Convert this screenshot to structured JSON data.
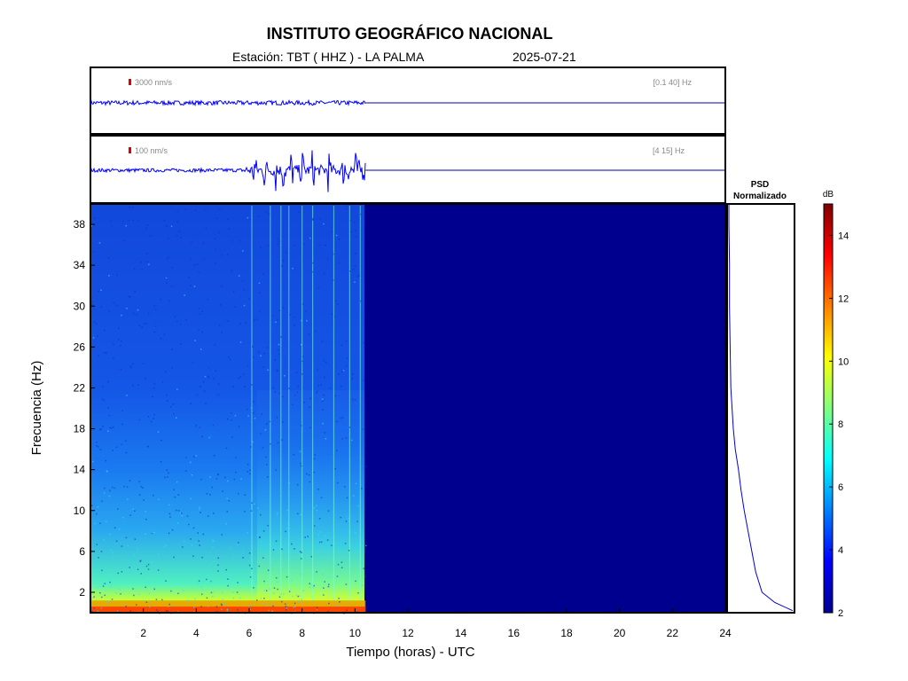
{
  "header": {
    "title": "INSTITUTO GEOGRÁFICO NACIONAL",
    "station": "Estación:  TBT ( HHZ ) - LA PALMA",
    "date": "2025-07-21"
  },
  "chart_data": [
    {
      "type": "line",
      "panel": "seismogram-broadband",
      "scale_label": "3000 nm/s",
      "band_label": "[0.1 40] Hz",
      "x_range_hours": [
        0,
        24
      ],
      "data_end_hour": 10.4,
      "amplitude_relative": "low, uniform"
    },
    {
      "type": "line",
      "panel": "seismogram-filtered",
      "scale_label": "100 nm/s",
      "band_label": "[4 15] Hz",
      "x_range_hours": [
        0,
        24
      ],
      "data_end_hour": 10.4,
      "bursts_hours": [
        6.2,
        6.6,
        7.0,
        7.3,
        7.6,
        8.0,
        8.4,
        9.0,
        9.6,
        10.0
      ]
    },
    {
      "type": "heatmap",
      "panel": "spectrogram",
      "xlabel": "Tiempo (horas) - UTC",
      "ylabel": "Frecuencia  (Hz)",
      "xlim": [
        0,
        24
      ],
      "ylim": [
        0,
        40
      ],
      "x_ticks": [
        2,
        4,
        6,
        8,
        10,
        12,
        14,
        16,
        18,
        20,
        22,
        24
      ],
      "y_ticks": [
        2,
        6,
        10,
        14,
        18,
        22,
        26,
        30,
        34,
        38
      ],
      "data_end_hour": 10.4,
      "colormap": "jet",
      "vertical_lines_hours": [
        6.1,
        6.8,
        7.2,
        7.5,
        8.0,
        8.4,
        9.2,
        9.8,
        10.2
      ]
    },
    {
      "type": "line",
      "panel": "psd",
      "title": "PSD\nNormalizado",
      "ylim": [
        0,
        40
      ],
      "profile": [
        {
          "f": 0.2,
          "p": 1.0
        },
        {
          "f": 1.0,
          "p": 0.72
        },
        {
          "f": 2.0,
          "p": 0.52
        },
        {
          "f": 4.0,
          "p": 0.42
        },
        {
          "f": 6.0,
          "p": 0.36
        },
        {
          "f": 8.0,
          "p": 0.3
        },
        {
          "f": 10.0,
          "p": 0.24
        },
        {
          "f": 12.0,
          "p": 0.19
        },
        {
          "f": 14.0,
          "p": 0.15
        },
        {
          "f": 16.0,
          "p": 0.1
        },
        {
          "f": 18.0,
          "p": 0.07
        },
        {
          "f": 20.0,
          "p": 0.05
        },
        {
          "f": 22.0,
          "p": 0.03
        },
        {
          "f": 26.0,
          "p": 0.02
        },
        {
          "f": 30.0,
          "p": 0.01
        },
        {
          "f": 34.0,
          "p": 0.01
        },
        {
          "f": 38.0,
          "p": 0.0
        },
        {
          "f": 40.0,
          "p": 0.0
        }
      ]
    },
    {
      "type": "colorbar",
      "panel": "colorbar",
      "unit": "dB",
      "range": [
        2,
        15
      ],
      "ticks": [
        2,
        4,
        6,
        8,
        10,
        12,
        14
      ]
    }
  ]
}
